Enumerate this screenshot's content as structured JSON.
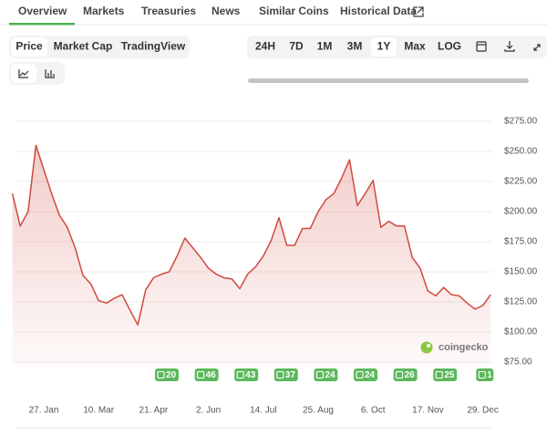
{
  "tabs": [
    "Overview",
    "Markets",
    "Treasuries",
    "News",
    "Similar Coins",
    "Historical Data"
  ],
  "chart_views": [
    "Price",
    "Market Cap",
    "TradingView"
  ],
  "ranges": [
    "24H",
    "7D",
    "1M",
    "3M",
    "1Y",
    "Max",
    "LOG"
  ],
  "chart_data": {
    "type": "line",
    "color": "#cf4a3f",
    "categories": [
      null,
      null,
      null,
      null,
      "27. Jan",
      null,
      null,
      null,
      null,
      null,
      null,
      "10. Mar",
      null,
      null,
      null,
      null,
      null,
      null,
      "21. Apr",
      null,
      null,
      null,
      null,
      null,
      null,
      "2. Jun",
      null,
      null,
      null,
      null,
      null,
      null,
      "14. Jul",
      null,
      null,
      null,
      null,
      null,
      null,
      "25. Aug",
      null,
      null,
      null,
      null,
      null,
      null,
      "6. Oct",
      null,
      null,
      null,
      null,
      null,
      null,
      "17. Nov",
      null,
      null,
      null,
      null,
      null,
      null,
      "29. Dec",
      null
    ],
    "values": [
      215,
      188,
      200,
      255,
      235,
      215,
      197,
      187,
      170,
      147,
      140,
      126,
      124,
      128,
      131,
      118,
      106,
      135,
      145,
      148,
      150,
      163,
      178,
      170,
      162,
      153,
      148,
      145,
      144,
      136,
      148,
      154,
      163,
      176,
      195,
      172,
      172,
      186,
      186,
      200,
      210,
      215,
      228,
      243,
      205,
      215,
      226,
      187,
      192,
      188,
      188,
      162,
      153,
      134,
      130,
      137,
      131,
      130,
      124,
      119,
      122,
      131
    ],
    "ylim": [
      75,
      275
    ],
    "yticks": [
      {
        "value": 75,
        "label": "$75.00"
      },
      {
        "value": 100,
        "label": "$100.00"
      },
      {
        "value": 125,
        "label": "$125.00"
      },
      {
        "value": 150,
        "label": "$150.00"
      },
      {
        "value": 175,
        "label": "$175.00"
      },
      {
        "value": 200,
        "label": "$200.00"
      },
      {
        "value": 225,
        "label": "$225.00"
      },
      {
        "value": 250,
        "label": "$250.00"
      },
      {
        "value": 275,
        "label": "$275.00"
      }
    ],
    "grid": true,
    "news_counts": [
      20,
      46,
      43,
      37,
      24,
      24,
      26,
      25,
      1
    ],
    "watermark": "coingecko"
  }
}
